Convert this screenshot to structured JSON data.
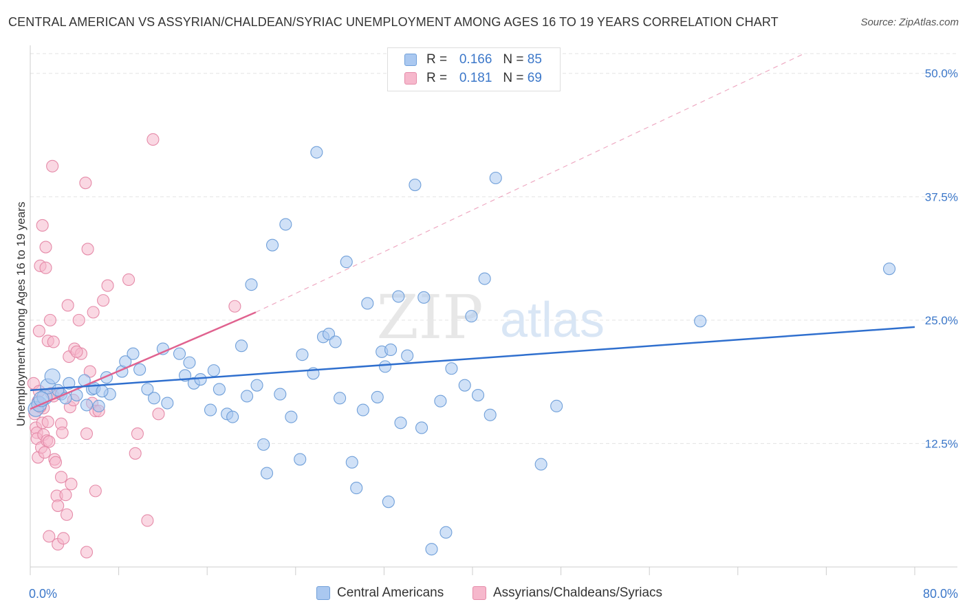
{
  "title": "CENTRAL AMERICAN VS ASSYRIAN/CHALDEAN/SYRIAC UNEMPLOYMENT AMONG AGES 16 TO 19 YEARS CORRELATION CHART",
  "source": "Source: ZipAtlas.com",
  "watermark": {
    "zip": "ZIP",
    "atlas": "atlas"
  },
  "legend": {
    "r_label": "R =",
    "n_label": "N =",
    "rows": [
      {
        "r": "0.166",
        "n": "85"
      },
      {
        "r": "0.181",
        "n": "69"
      }
    ]
  },
  "colors": {
    "blue_fill": "#aac8f0",
    "blue_stroke": "#6f9fd9",
    "blue_line": "#2f6fce",
    "pink_fill": "#f6b8cc",
    "pink_stroke": "#e58aa8",
    "pink_line": "#e0628f",
    "tick_label": "#3b77c9",
    "grid": "#e3e3e3"
  },
  "chart_data": {
    "type": "scatter",
    "title": "CENTRAL AMERICAN VS ASSYRIAN/CHALDEAN/SYRIAC UNEMPLOYMENT AMONG AGES 16 TO 19 YEARS CORRELATION CHART",
    "xlabel": "",
    "ylabel": "Unemployment Among Ages 16 to 19 years",
    "xlim": [
      0,
      80
    ],
    "ylim": [
      0,
      52
    ],
    "x_tick_labels": [
      "0.0%",
      "80.0%"
    ],
    "y_ticks": [
      12.5,
      25.0,
      37.5,
      50.0
    ],
    "y_tick_labels": [
      "12.5%",
      "25.0%",
      "37.5%",
      "50.0%"
    ],
    "grid": true,
    "legend_position": "top-center",
    "series": [
      {
        "name": "Central Americans",
        "R": 0.166,
        "N": 85,
        "trend": {
          "x": [
            0,
            80
          ],
          "y": [
            17.9,
            24.3
          ],
          "style": "solid"
        },
        "points": [
          [
            0.5,
            16.0
          ],
          [
            0.8,
            16.5
          ],
          [
            1.3,
            17.2
          ],
          [
            1.6,
            18.3
          ],
          [
            2.0,
            19.3
          ],
          [
            2.8,
            17.5
          ],
          [
            3.5,
            18.6
          ],
          [
            4.2,
            17.4
          ],
          [
            4.9,
            18.9
          ],
          [
            5.6,
            18.0
          ],
          [
            5.1,
            16.4
          ],
          [
            6.2,
            16.3
          ],
          [
            7.2,
            17.5
          ],
          [
            6.9,
            19.2
          ],
          [
            8.3,
            19.8
          ],
          [
            8.6,
            20.8
          ],
          [
            9.3,
            21.6
          ],
          [
            9.9,
            20.0
          ],
          [
            10.6,
            18.0
          ],
          [
            11.2,
            17.1
          ],
          [
            12.0,
            22.1
          ],
          [
            12.4,
            16.6
          ],
          [
            13.5,
            21.6
          ],
          [
            14.4,
            20.7
          ],
          [
            14.0,
            19.4
          ],
          [
            14.8,
            18.6
          ],
          [
            15.4,
            19.0
          ],
          [
            16.3,
            15.9
          ],
          [
            16.6,
            19.9
          ],
          [
            17.1,
            18.0
          ],
          [
            17.8,
            15.5
          ],
          [
            18.3,
            15.2
          ],
          [
            19.1,
            22.4
          ],
          [
            19.6,
            17.3
          ],
          [
            20.0,
            28.6
          ],
          [
            20.5,
            18.4
          ],
          [
            21.1,
            12.4
          ],
          [
            21.4,
            9.5
          ],
          [
            21.9,
            32.6
          ],
          [
            22.6,
            17.5
          ],
          [
            23.1,
            34.7
          ],
          [
            23.6,
            15.2
          ],
          [
            24.4,
            10.9
          ],
          [
            24.6,
            21.5
          ],
          [
            25.6,
            19.6
          ],
          [
            25.9,
            42.0
          ],
          [
            26.5,
            23.3
          ],
          [
            27.0,
            23.6
          ],
          [
            27.6,
            22.8
          ],
          [
            28.0,
            17.1
          ],
          [
            28.6,
            30.9
          ],
          [
            29.1,
            10.6
          ],
          [
            29.5,
            8.0
          ],
          [
            30.1,
            15.9
          ],
          [
            30.5,
            26.7
          ],
          [
            31.4,
            17.2
          ],
          [
            31.8,
            21.8
          ],
          [
            32.1,
            20.3
          ],
          [
            32.4,
            6.6
          ],
          [
            32.6,
            22.0
          ],
          [
            33.3,
            27.4
          ],
          [
            33.5,
            14.6
          ],
          [
            34.1,
            21.4
          ],
          [
            34.8,
            38.7
          ],
          [
            35.4,
            14.1
          ],
          [
            35.6,
            27.3
          ],
          [
            36.3,
            1.8
          ],
          [
            37.1,
            16.8
          ],
          [
            37.6,
            3.5
          ],
          [
            38.1,
            20.1
          ],
          [
            39.3,
            18.4
          ],
          [
            39.9,
            25.4
          ],
          [
            40.5,
            17.4
          ],
          [
            41.1,
            29.2
          ],
          [
            41.6,
            15.4
          ],
          [
            42.1,
            39.4
          ],
          [
            46.2,
            10.4
          ],
          [
            47.6,
            16.3
          ],
          [
            60.6,
            24.9
          ],
          [
            77.7,
            30.2
          ],
          [
            1.0,
            17.0
          ],
          [
            2.5,
            17.9
          ],
          [
            3.2,
            17.1
          ],
          [
            5.8,
            18.1
          ],
          [
            6.5,
            17.8
          ]
        ]
      },
      {
        "name": "Assyrians/Chaldeans/Syriacs",
        "R": 0.181,
        "N": 69,
        "trend": {
          "x": [
            0,
            20.4
          ],
          "y": [
            16.0,
            25.8
          ],
          "style": "solid"
        },
        "trend_extension": {
          "x": [
            20.4,
            70.0
          ],
          "y": [
            25.8,
            52.0
          ],
          "style": "dashed"
        },
        "points": [
          [
            0.3,
            18.6
          ],
          [
            0.4,
            15.5
          ],
          [
            0.5,
            14.1
          ],
          [
            0.6,
            13.6
          ],
          [
            0.6,
            13.0
          ],
          [
            0.7,
            16.8
          ],
          [
            0.8,
            17.8
          ],
          [
            0.7,
            11.1
          ],
          [
            0.8,
            23.9
          ],
          [
            0.9,
            30.5
          ],
          [
            1.0,
            12.1
          ],
          [
            1.1,
            14.6
          ],
          [
            1.2,
            16.1
          ],
          [
            1.3,
            11.6
          ],
          [
            1.2,
            13.4
          ],
          [
            1.1,
            34.6
          ],
          [
            1.4,
            32.4
          ],
          [
            1.4,
            30.3
          ],
          [
            1.5,
            12.8
          ],
          [
            1.6,
            22.9
          ],
          [
            1.6,
            14.7
          ],
          [
            1.7,
            12.7
          ],
          [
            1.7,
            3.1
          ],
          [
            1.8,
            25.0
          ],
          [
            1.9,
            17.6
          ],
          [
            2.0,
            40.6
          ],
          [
            2.1,
            22.8
          ],
          [
            2.2,
            10.9
          ],
          [
            2.3,
            10.6
          ],
          [
            2.4,
            7.2
          ],
          [
            2.5,
            6.2
          ],
          [
            2.5,
            2.3
          ],
          [
            2.6,
            17.6
          ],
          [
            2.8,
            9.1
          ],
          [
            2.8,
            14.5
          ],
          [
            2.9,
            13.6
          ],
          [
            3.0,
            2.9
          ],
          [
            3.2,
            7.3
          ],
          [
            3.3,
            5.3
          ],
          [
            3.4,
            26.5
          ],
          [
            3.5,
            21.3
          ],
          [
            3.6,
            16.2
          ],
          [
            3.7,
            8.4
          ],
          [
            4.0,
            22.1
          ],
          [
            4.4,
            25.0
          ],
          [
            4.6,
            21.6
          ],
          [
            5.0,
            38.9
          ],
          [
            5.1,
            1.5
          ],
          [
            5.1,
            13.5
          ],
          [
            5.2,
            32.2
          ],
          [
            5.4,
            19.8
          ],
          [
            5.6,
            16.6
          ],
          [
            5.7,
            25.8
          ],
          [
            5.9,
            7.7
          ],
          [
            5.9,
            15.8
          ],
          [
            6.2,
            15.8
          ],
          [
            6.6,
            27.0
          ],
          [
            7.0,
            28.5
          ],
          [
            8.9,
            29.1
          ],
          [
            9.5,
            11.5
          ],
          [
            9.7,
            13.5
          ],
          [
            10.6,
            4.7
          ],
          [
            11.1,
            43.3
          ],
          [
            11.6,
            15.5
          ],
          [
            18.5,
            26.4
          ],
          [
            2.1,
            17.3
          ],
          [
            3.9,
            16.9
          ],
          [
            4.2,
            21.8
          ],
          [
            0.9,
            16.2
          ]
        ]
      }
    ]
  },
  "bottom_legend": [
    "Central Americans",
    "Assyrians/Chaldeans/Syriacs"
  ]
}
